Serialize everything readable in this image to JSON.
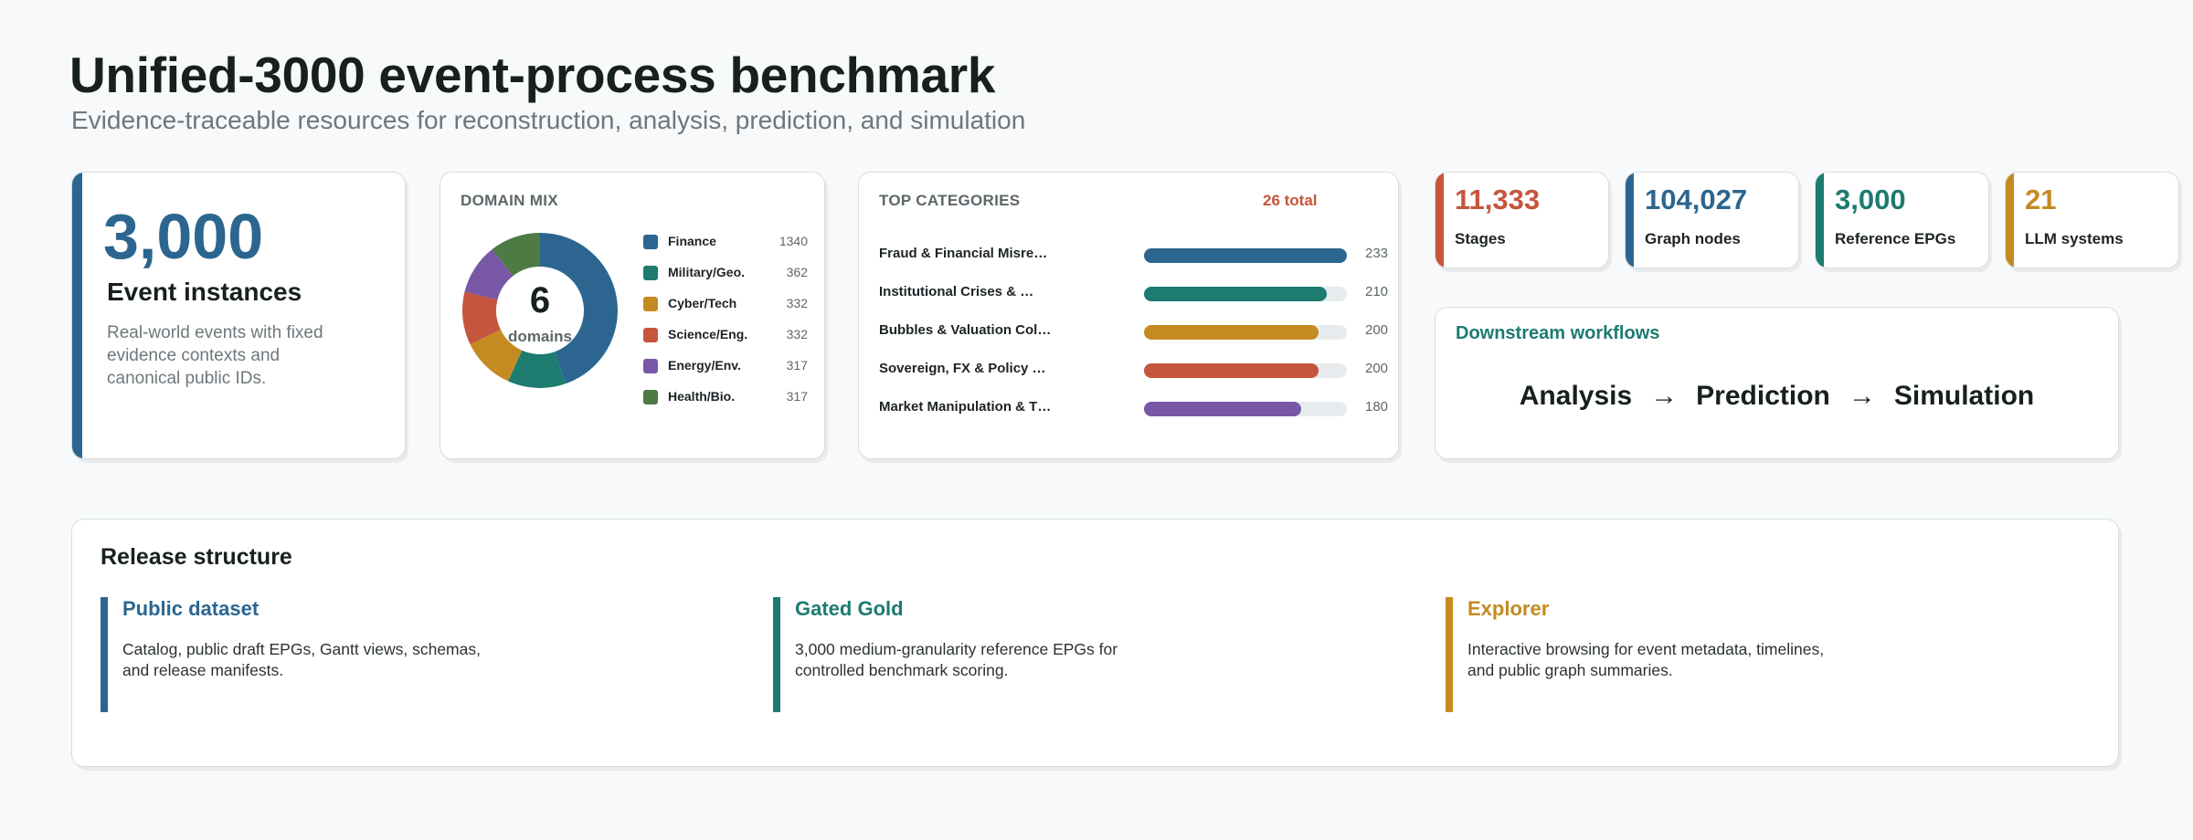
{
  "header": {
    "title": "Unified-3000 event-process benchmark",
    "subtitle": "Evidence-traceable resources for reconstruction, analysis, prediction, and simulation"
  },
  "hero": {
    "value": "3,000",
    "label": "Event instances",
    "description": "Real-world events with fixed evidence contexts and canonical public IDs.",
    "color": "#2c6690"
  },
  "domain_mix": {
    "heading": "DOMAIN MIX",
    "center_value": "6",
    "center_label": "domains",
    "items": [
      {
        "label": "Finance",
        "value": 1340,
        "color": "#2c6690"
      },
      {
        "label": "Military/Geo.",
        "value": 362,
        "color": "#1d7b70"
      },
      {
        "label": "Cyber/Tech",
        "value": 332,
        "color": "#c48b22"
      },
      {
        "label": "Science/Eng.",
        "value": 332,
        "color": "#c5553c"
      },
      {
        "label": "Energy/Env.",
        "value": 317,
        "color": "#7858a6"
      },
      {
        "label": "Health/Bio.",
        "value": 317,
        "color": "#4e7a43"
      }
    ]
  },
  "top_categories": {
    "heading": "TOP CATEGORIES",
    "total_label": "26 total",
    "max": 233,
    "items": [
      {
        "label": "Fraud & Financial Misre…",
        "value": 233,
        "color": "#2c6690"
      },
      {
        "label": "Institutional Crises & …",
        "value": 210,
        "color": "#1d7b70"
      },
      {
        "label": "Bubbles & Valuation Col…",
        "value": 200,
        "color": "#c48b22"
      },
      {
        "label": "Sovereign, FX & Policy …",
        "value": 200,
        "color": "#c5553c"
      },
      {
        "label": "Market Manipulation & T…",
        "value": 180,
        "color": "#7858a6"
      }
    ]
  },
  "stats": [
    {
      "value": "11,333",
      "label": "Stages",
      "color": "#c5553c"
    },
    {
      "value": "104,027",
      "label": "Graph nodes",
      "color": "#2c6690"
    },
    {
      "value": "3,000",
      "label": "Reference EPGs",
      "color": "#1d7b70"
    },
    {
      "value": "21",
      "label": "LLM systems",
      "color": "#c48b22"
    }
  ],
  "workflows": {
    "heading": "Downstream workflows",
    "steps": [
      "Analysis",
      "Prediction",
      "Simulation"
    ],
    "arrow": "→"
  },
  "release": {
    "heading": "Release structure",
    "items": [
      {
        "title": "Public dataset",
        "description": "Catalog, public draft EPGs, Gantt views, schemas, and release manifests.",
        "color": "#2c6690"
      },
      {
        "title": "Gated Gold",
        "description": "3,000 medium-granularity reference EPGs for controlled benchmark scoring.",
        "color": "#1d7b70"
      },
      {
        "title": "Explorer",
        "description": "Interactive browsing for event metadata, timelines, and public graph summaries.",
        "color": "#c48b22"
      }
    ]
  },
  "chart_data": {
    "type": "pie",
    "categories": [
      "Finance",
      "Military/Geo.",
      "Cyber/Tech",
      "Science/Eng.",
      "Energy/Env.",
      "Health/Bio."
    ],
    "values": [
      1340,
      362,
      332,
      332,
      317,
      317
    ],
    "title": "DOMAIN MIX"
  }
}
